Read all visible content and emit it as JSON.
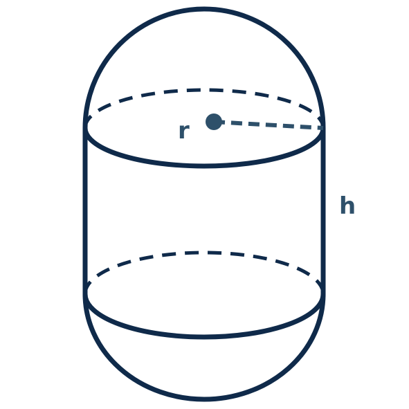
{
  "colors": {
    "outline": "#0f2a4a",
    "radius_line": "#2e506a",
    "label": "#2e506a",
    "background": "#ffffff"
  },
  "labels": {
    "radius": "r",
    "height": "h"
  }
}
